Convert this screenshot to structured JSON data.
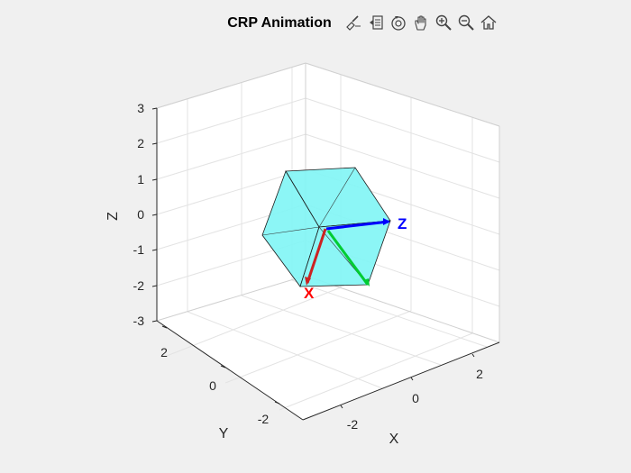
{
  "figure": {
    "title": "CRP Animation",
    "background_color": "#f0f0f0"
  },
  "axes": {
    "xlabel": "X",
    "ylabel": "Y",
    "zlabel": "Z",
    "xlim": [
      -3,
      3
    ],
    "ylim": [
      -3,
      3
    ],
    "zlim": [
      -3,
      3
    ],
    "x_ticks": [
      "-2",
      "0",
      "2"
    ],
    "y_ticks": [
      "-2",
      "0",
      "2"
    ],
    "z_ticks": [
      "-3",
      "-2",
      "-1",
      "0",
      "1",
      "2",
      "3"
    ],
    "grid": true,
    "view": "3-D default (az -37.5, el 30)"
  },
  "body": {
    "shape": "cube",
    "face_color": "#7ff5f5",
    "edge_color": "#000000"
  },
  "frame_axes": [
    {
      "label": "X",
      "color": "#ff0000"
    },
    {
      "label": "Z",
      "color": "#0000ff"
    },
    {
      "label": "",
      "color": "#00cc33"
    }
  ],
  "toolbar": [
    {
      "name": "brush-icon",
      "tooltip": "Brush"
    },
    {
      "name": "data-tips-icon",
      "tooltip": "Data Tips"
    },
    {
      "name": "rotate-3d-icon",
      "tooltip": "Rotate 3D"
    },
    {
      "name": "pan-hand-icon",
      "tooltip": "Pan"
    },
    {
      "name": "zoom-in-icon",
      "tooltip": "Zoom In"
    },
    {
      "name": "zoom-out-icon",
      "tooltip": "Zoom Out"
    },
    {
      "name": "home-icon",
      "tooltip": "Restore View"
    }
  ]
}
